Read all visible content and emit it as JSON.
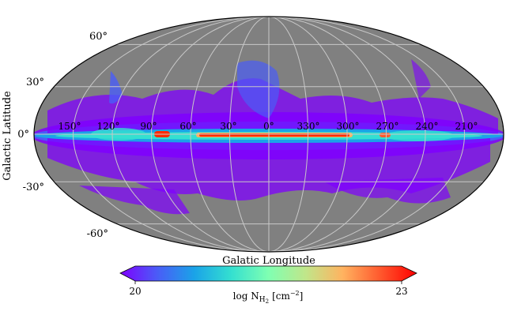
{
  "map": {
    "projection": "Mollweide",
    "x_axis_label": "Galatic Longitude",
    "y_axis_label": "Galactic Latitude",
    "latitude_labels": [
      "60°",
      "30°",
      "0°",
      "-30°",
      "-60°"
    ],
    "longitude_labels": [
      "150°",
      "120°",
      "90°",
      "60°",
      "30°",
      "0°",
      "330°",
      "300°",
      "270°",
      "240°",
      "210°"
    ],
    "background_color": "#808080",
    "grid_color": "#c8c8c8"
  },
  "colorbar": {
    "label_prefix": "log N",
    "label_subscript": "H",
    "label_sub_subscript": "2",
    "label_unit": "[cm",
    "label_unit_exp": "−2",
    "label_unit_close": "]",
    "min_label": "20",
    "max_label": "23",
    "colors": [
      "#7f00ff",
      "#4a5cf7",
      "#1aa3e8",
      "#34e0d0",
      "#7fffb2",
      "#c0e68a",
      "#ffb360",
      "#ff5a2e",
      "#ff0000"
    ]
  }
}
